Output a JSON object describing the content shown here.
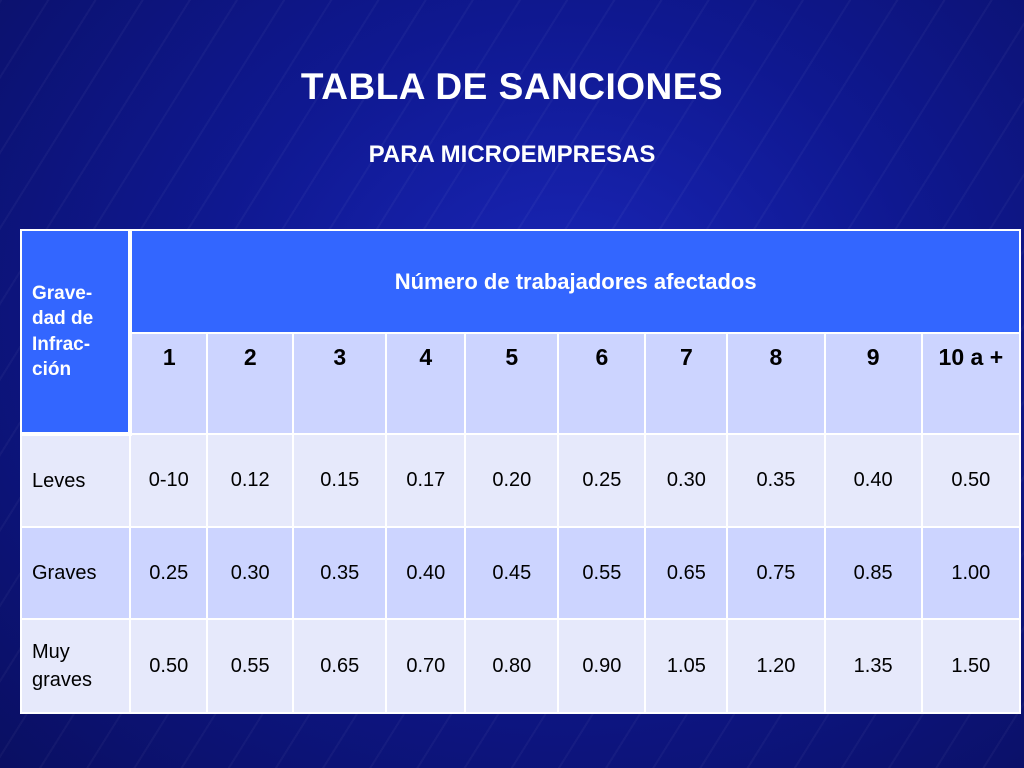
{
  "title": "TABLA DE SANCIONES",
  "subtitle": "PARA MICROEMPRESAS",
  "table": {
    "corner_lines": [
      "Grave-",
      "dad de",
      "Infrac-",
      "ción"
    ],
    "group_header": "Número de trabajadores afectados",
    "columns": [
      "1",
      "2",
      "3",
      "4",
      "5",
      "6",
      "7",
      "8",
      "9",
      "10 a +"
    ],
    "rows": [
      {
        "label_lines": [
          "Leves"
        ],
        "values": [
          "0-10",
          "0.12",
          "0.15",
          "0.17",
          "0.20",
          "0.25",
          "0.30",
          "0.35",
          "0.40",
          "0.50"
        ]
      },
      {
        "label_lines": [
          "Graves"
        ],
        "values": [
          "0.25",
          "0.30",
          "0.35",
          "0.40",
          "0.45",
          "0.55",
          "0.65",
          "0.75",
          "0.85",
          "1.00"
        ]
      },
      {
        "label_lines": [
          "Muy",
          "graves"
        ],
        "values": [
          "0.50",
          "0.55",
          "0.65",
          "0.70",
          "0.80",
          "0.90",
          "1.05",
          "1.20",
          "1.35",
          "1.50"
        ]
      }
    ]
  },
  "colors": {
    "background": "#0f1890",
    "header_blue": "#3366ff",
    "row_light": "#e6e9fb",
    "row_dark": "#ccd4ff"
  }
}
